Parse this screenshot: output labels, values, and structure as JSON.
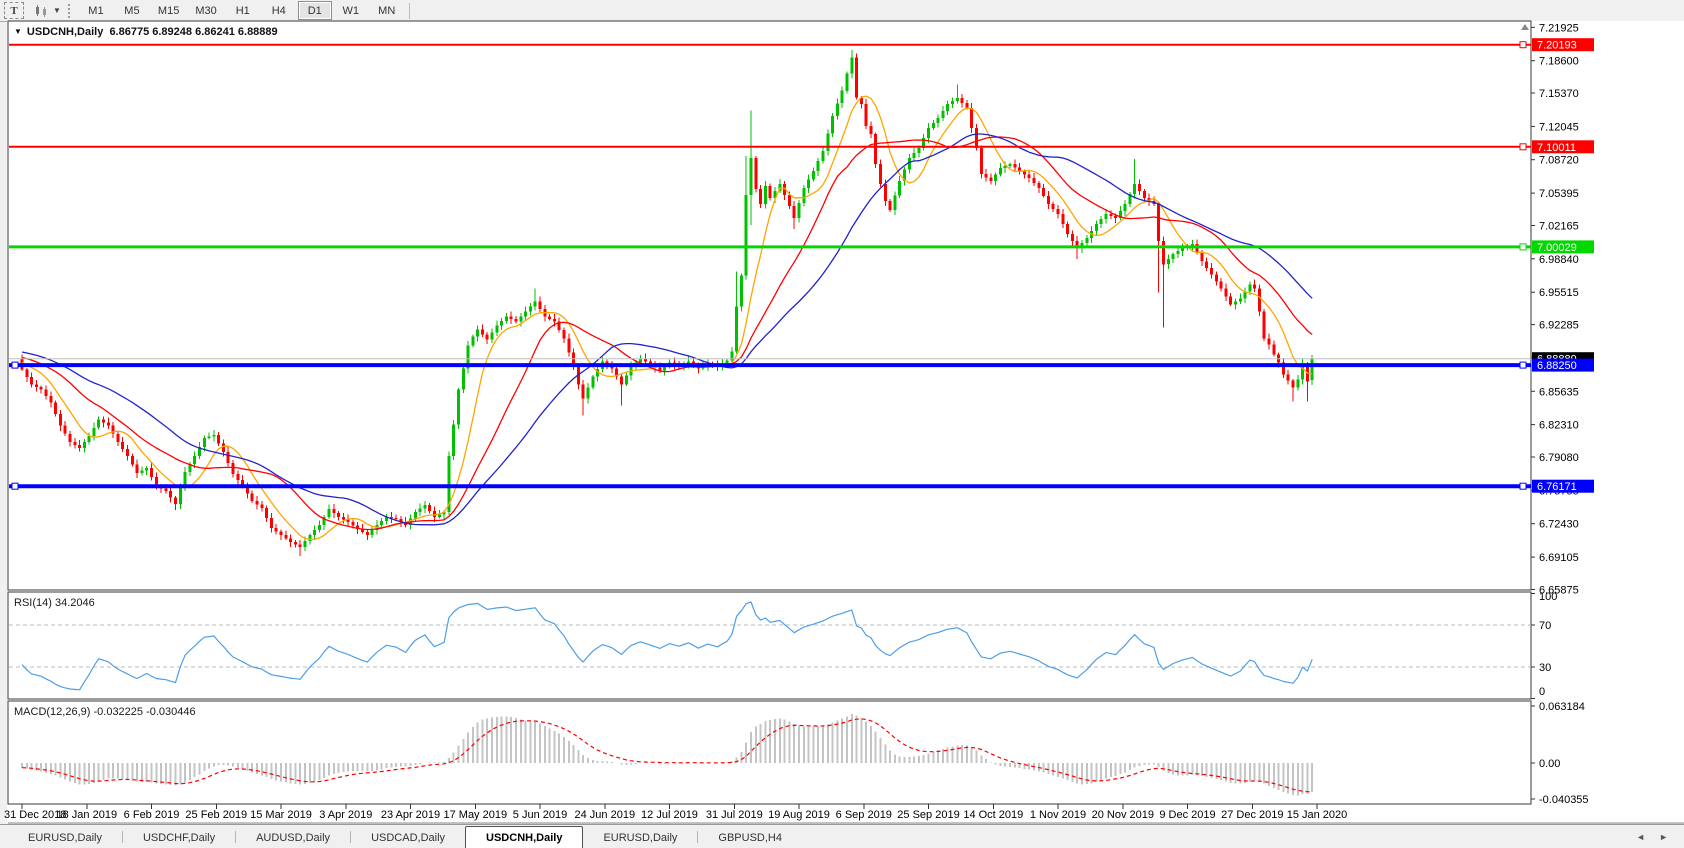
{
  "toolbar": {
    "insert_text_tool": "T",
    "timeframes": [
      "M1",
      "M5",
      "M15",
      "M30",
      "H1",
      "H4",
      "D1",
      "W1",
      "MN"
    ],
    "active_timeframe": "D1"
  },
  "chart": {
    "symbol_title": "USDCNH,Daily",
    "quote": {
      "open": "6.86775",
      "high": "6.89248",
      "low": "6.86241",
      "close": "6.88889"
    }
  },
  "chart_data": {
    "type": "candlestick",
    "symbol": "USDCNH",
    "timeframe": "Daily",
    "colors": {
      "bull": "#00c000",
      "bear": "#ff0000",
      "ma_fast": "#ffa500",
      "ma_mid": "#ff0000",
      "ma_slow": "#2222cc",
      "rsi_line": "#4c9fe8",
      "macd_hist": "#c4c4c4",
      "macd_signal": "#ff0000",
      "current_price_line": "#c0c0c0",
      "badge_current": "#000000"
    },
    "y_axis": {
      "min": 6.65875,
      "max": 7.21925,
      "ticks": [
        "7.21925",
        "7.18600",
        "7.15370",
        "7.12045",
        "7.08720",
        "7.05395",
        "7.02165",
        "6.98840",
        "6.95515",
        "6.92285",
        "6.88960",
        "6.85635",
        "6.82310",
        "6.79080",
        "6.75755",
        "6.72430",
        "6.69105",
        "6.65875"
      ]
    },
    "x_axis": {
      "labels": [
        "31 Dec 2018",
        "18 Jan 2019",
        "6 Feb 2019",
        "25 Feb 2019",
        "15 Mar 2019",
        "3 Apr 2019",
        "23 Apr 2019",
        "17 May 2019",
        "5 Jun 2019",
        "24 Jun 2019",
        "12 Jul 2019",
        "31 Jul 2019",
        "19 Aug 2019",
        "6 Sep 2019",
        "25 Sep 2019",
        "14 Oct 2019",
        "1 Nov 2019",
        "20 Nov 2019",
        "9 Dec 2019",
        "27 Dec 2019",
        "15 Jan 2020"
      ]
    },
    "horizontal_lines": [
      {
        "price": 7.20193,
        "label": "7.20193",
        "color": "#ff0000",
        "thickness": 2,
        "left_handle": false
      },
      {
        "price": 7.10011,
        "label": "7.10011",
        "color": "#ff0000",
        "thickness": 2,
        "left_handle": false
      },
      {
        "price": 7.00029,
        "label": "7.00029",
        "color": "#00d800",
        "thickness": 3,
        "left_handle": false
      },
      {
        "price": 6.8825,
        "label": "6.88250",
        "color": "#0000ff",
        "thickness": 4,
        "left_handle": true
      },
      {
        "price": 6.76171,
        "label": "6.76171",
        "color": "#0000ff",
        "thickness": 4,
        "left_handle": true
      }
    ],
    "current_price": {
      "value": 6.88889,
      "label": "6.88889"
    },
    "moving_averages": [
      {
        "period": 8,
        "color": "#ffa500"
      },
      {
        "period": 20,
        "color": "#ff0000"
      },
      {
        "period": 35,
        "color": "#2222cc"
      }
    ],
    "candle_close_anchors": [
      [
        0,
        6.878
      ],
      [
        2,
        6.863
      ],
      [
        4,
        6.858
      ],
      [
        6,
        6.845
      ],
      [
        8,
        6.822
      ],
      [
        10,
        6.806
      ],
      [
        12,
        6.8
      ],
      [
        14,
        6.812
      ],
      [
        16,
        6.828
      ],
      [
        18,
        6.822
      ],
      [
        20,
        6.806
      ],
      [
        22,
        6.792
      ],
      [
        24,
        6.775
      ],
      [
        26,
        6.78
      ],
      [
        28,
        6.762
      ],
      [
        30,
        6.757
      ],
      [
        32,
        6.744
      ],
      [
        34,
        6.776
      ],
      [
        36,
        6.792
      ],
      [
        38,
        6.81
      ],
      [
        40,
        6.813
      ],
      [
        42,
        6.796
      ],
      [
        44,
        6.774
      ],
      [
        46,
        6.762
      ],
      [
        48,
        6.747
      ],
      [
        50,
        6.74
      ],
      [
        52,
        6.72
      ],
      [
        54,
        6.713
      ],
      [
        56,
        6.706
      ],
      [
        58,
        6.701
      ],
      [
        60,
        6.713
      ],
      [
        62,
        6.723
      ],
      [
        64,
        6.739
      ],
      [
        66,
        6.731
      ],
      [
        68,
        6.726
      ],
      [
        70,
        6.719
      ],
      [
        72,
        6.713
      ],
      [
        74,
        6.723
      ],
      [
        76,
        6.731
      ],
      [
        78,
        6.729
      ],
      [
        80,
        6.723
      ],
      [
        82,
        6.736
      ],
      [
        84,
        6.743
      ],
      [
        86,
        6.731
      ],
      [
        88,
        6.736
      ],
      [
        89,
        6.792
      ],
      [
        90,
        6.823
      ],
      [
        91,
        6.858
      ],
      [
        92,
        6.879
      ],
      [
        93,
        6.902
      ],
      [
        94,
        6.911
      ],
      [
        95,
        6.918
      ],
      [
        97,
        6.908
      ],
      [
        99,
        6.922
      ],
      [
        101,
        6.931
      ],
      [
        103,
        6.926
      ],
      [
        105,
        6.936
      ],
      [
        107,
        6.946
      ],
      [
        109,
        6.931
      ],
      [
        111,
        6.926
      ],
      [
        113,
        6.909
      ],
      [
        115,
        6.881
      ],
      [
        116,
        6.863
      ],
      [
        117,
        6.849
      ],
      [
        119,
        6.871
      ],
      [
        121,
        6.886
      ],
      [
        123,
        6.879
      ],
      [
        125,
        6.863
      ],
      [
        127,
        6.881
      ],
      [
        129,
        6.889
      ],
      [
        131,
        6.883
      ],
      [
        133,
        6.877
      ],
      [
        135,
        6.885
      ],
      [
        137,
        6.881
      ],
      [
        139,
        6.886
      ],
      [
        141,
        6.879
      ],
      [
        143,
        6.884
      ],
      [
        145,
        6.881
      ],
      [
        147,
        6.887
      ],
      [
        148,
        6.896
      ],
      [
        149,
        6.941
      ],
      [
        150,
        6.972
      ],
      [
        151,
        7.052
      ],
      [
        152,
        7.089
      ],
      [
        153,
        7.058
      ],
      [
        154,
        7.043
      ],
      [
        155,
        7.061
      ],
      [
        156,
        7.049
      ],
      [
        158,
        7.063
      ],
      [
        160,
        7.041
      ],
      [
        161,
        7.029
      ],
      [
        163,
        7.059
      ],
      [
        165,
        7.076
      ],
      [
        167,
        7.096
      ],
      [
        169,
        7.131
      ],
      [
        171,
        7.156
      ],
      [
        172,
        7.173
      ],
      [
        173,
        7.189
      ],
      [
        174,
        7.149
      ],
      [
        175,
        7.143
      ],
      [
        176,
        7.121
      ],
      [
        177,
        7.113
      ],
      [
        178,
        7.083
      ],
      [
        179,
        7.063
      ],
      [
        180,
        7.046
      ],
      [
        181,
        7.037
      ],
      [
        183,
        7.066
      ],
      [
        185,
        7.089
      ],
      [
        187,
        7.099
      ],
      [
        189,
        7.119
      ],
      [
        191,
        7.129
      ],
      [
        193,
        7.143
      ],
      [
        195,
        7.149
      ],
      [
        197,
        7.139
      ],
      [
        199,
        7.099
      ],
      [
        200,
        7.073
      ],
      [
        202,
        7.066
      ],
      [
        204,
        7.079
      ],
      [
        206,
        7.083
      ],
      [
        208,
        7.076
      ],
      [
        210,
        7.069
      ],
      [
        212,
        7.059
      ],
      [
        214,
        7.043
      ],
      [
        216,
        7.033
      ],
      [
        218,
        7.013
      ],
      [
        220,
        6.999
      ],
      [
        222,
        7.009
      ],
      [
        224,
        7.023
      ],
      [
        226,
        7.033
      ],
      [
        228,
        7.029
      ],
      [
        230,
        7.043
      ],
      [
        232,
        7.063
      ],
      [
        234,
        7.049
      ],
      [
        236,
        7.043
      ],
      [
        237,
        7.006
      ],
      [
        238,
        6.983
      ],
      [
        240,
        6.993
      ],
      [
        242,
        6.999
      ],
      [
        244,
        7.003
      ],
      [
        246,
        6.986
      ],
      [
        248,
        6.973
      ],
      [
        250,
        6.959
      ],
      [
        252,
        6.943
      ],
      [
        254,
        6.949
      ],
      [
        256,
        6.963
      ],
      [
        257,
        6.959
      ],
      [
        258,
        6.936
      ],
      [
        259,
        6.909
      ],
      [
        260,
        6.903
      ],
      [
        261,
        6.893
      ],
      [
        262,
        6.885
      ],
      [
        263,
        6.873
      ],
      [
        264,
        6.867
      ],
      [
        265,
        6.86
      ],
      [
        266,
        6.868
      ],
      [
        267,
        6.884
      ],
      [
        268,
        6.866
      ],
      [
        269,
        6.88889
      ]
    ],
    "wick_extremes": [
      [
        32,
        null,
        6.738
      ],
      [
        58,
        null,
        6.692
      ],
      [
        107,
        6.959,
        null
      ],
      [
        117,
        null,
        6.832
      ],
      [
        125,
        null,
        6.842
      ],
      [
        149,
        6.976,
        null
      ],
      [
        151,
        7.091,
        6.968
      ],
      [
        152,
        7.1365,
        7.022
      ],
      [
        161,
        null,
        7.018
      ],
      [
        173,
        7.1965,
        null
      ],
      [
        195,
        7.162,
        null
      ],
      [
        220,
        null,
        6.988
      ],
      [
        232,
        7.088,
        null
      ],
      [
        237,
        null,
        6.955
      ],
      [
        238,
        null,
        6.92
      ],
      [
        265,
        null,
        6.846
      ],
      [
        268,
        null,
        6.846
      ],
      [
        269,
        6.89248,
        6.86241
      ]
    ],
    "last_candle": {
      "open": 6.86775,
      "high": 6.89248,
      "low": 6.86241,
      "close": 6.88889
    },
    "rsi": {
      "label": "RSI(14)",
      "value": "34.2046",
      "period": 14,
      "levels": [
        70,
        30
      ],
      "scale_labels": [
        "100",
        "70",
        "30",
        "0"
      ]
    },
    "macd": {
      "label": "MACD(12,26,9)",
      "values": [
        "-0.032225",
        "-0.030446"
      ],
      "params": [
        12,
        26,
        9
      ],
      "scale_labels": [
        "0.063184",
        "0.00",
        "-0.040355"
      ],
      "scale_values": [
        0.063184,
        0.0,
        -0.040355
      ]
    }
  },
  "tabs": {
    "items": [
      "EURUSD,Daily",
      "USDCHF,Daily",
      "AUDUSD,Daily",
      "USDCAD,Daily",
      "USDCNH,Daily",
      "EURUSD,Daily",
      "GBPUSD,H4"
    ],
    "active_index": 4
  }
}
